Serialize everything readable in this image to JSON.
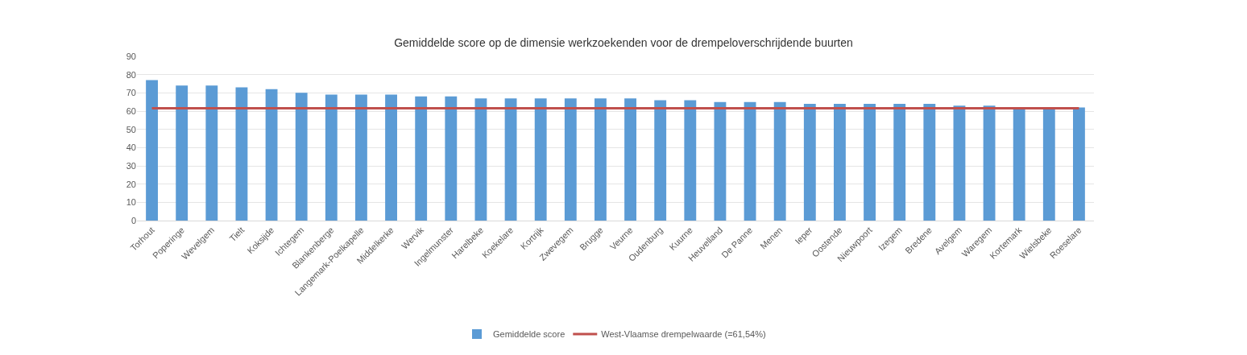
{
  "chart_data": {
    "type": "bar",
    "title": "Gemiddelde score op de dimensie werkzoekenden voor de drempeloverschrijdende buurten",
    "categories": [
      "Torhout",
      "Poperinge",
      "Wevelgem",
      "Tielt",
      "Koksijde",
      "Ichtegem",
      "Blankenberge",
      "Langemark-Poelkapelle",
      "Middelkerke",
      "Wervik",
      "Ingelmunster",
      "Harelbeke",
      "Koekelare",
      "Kortrijk",
      "Zwevegem",
      "Brugge",
      "Veurne",
      "Oudenburg",
      "Kuurne",
      "Heuvelland",
      "De Panne",
      "Menen",
      "Ieper",
      "Oostende",
      "Nieuwpoort",
      "Izegem",
      "Bredene",
      "Avelgem",
      "Waregem",
      "Kortemark",
      "Wielsbeke",
      "Roeselare"
    ],
    "series": [
      {
        "name": "Gemiddelde score",
        "color": "#5b9bd5",
        "values": [
          77,
          74,
          74,
          73,
          72,
          70,
          69,
          69,
          69,
          68,
          68,
          67,
          67,
          67,
          67,
          67,
          67,
          66,
          66,
          65,
          65,
          65,
          64,
          64,
          64,
          64,
          64,
          63,
          63,
          62,
          62,
          62
        ]
      }
    ],
    "ref_lines": [
      {
        "axis": "y",
        "value": 61.54,
        "label": "West-Vlaamse drempelwaarde (=61,54%)",
        "color": "#c0504d",
        "line_style": "solid"
      }
    ],
    "ylim": [
      0,
      90
    ],
    "yticks": [
      0,
      10,
      20,
      30,
      40,
      50,
      60,
      70,
      80,
      90
    ],
    "grid": "y",
    "legend": "bottom"
  }
}
